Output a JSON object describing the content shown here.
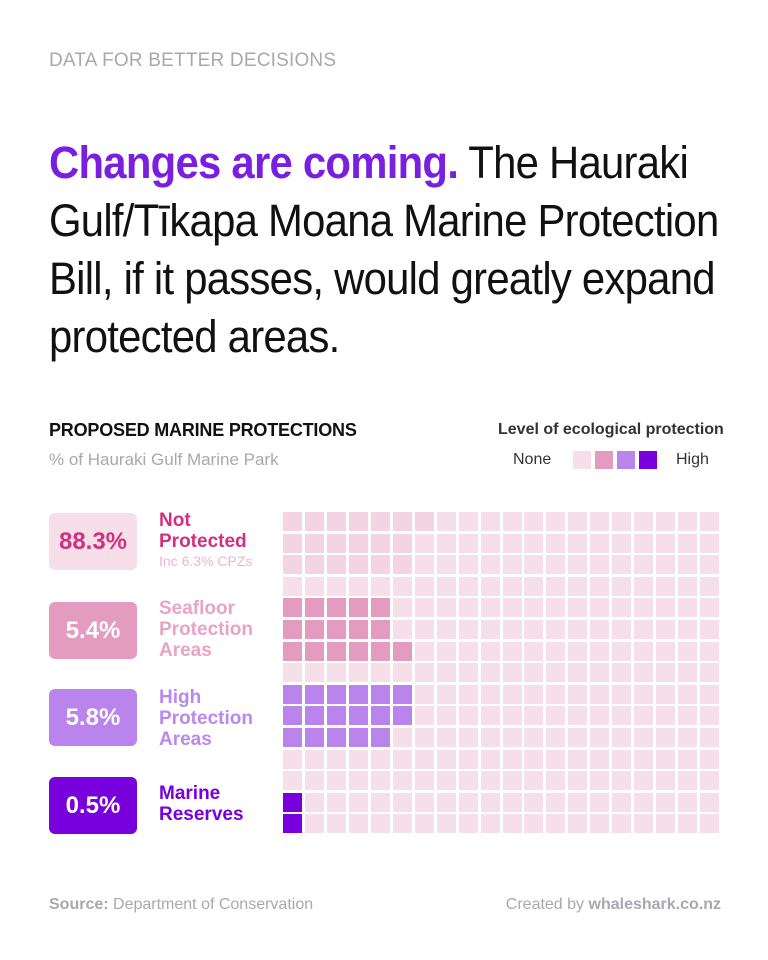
{
  "kicker": "DATA FOR BETTER DECISIONS",
  "headline": {
    "highlight": "Changes are coming.",
    "rest": " The Hauraki Gulf/Tīkapa Moana Marine Protection Bill, if it passes, would greatly expand protected areas."
  },
  "section": {
    "title": "PROPOSED MARINE PROTECTIONS",
    "subtitle": "% of Hauraki Gulf Marine Park"
  },
  "legend": {
    "title": "Level of ecological protection",
    "low_label": "None",
    "high_label": "High",
    "colors": [
      "#f7dfea",
      "#e49bc0",
      "#b984ec",
      "#7700dd"
    ]
  },
  "chart_data": {
    "type": "waffle",
    "title": "PROPOSED MARINE PROTECTIONS",
    "subtitle": "% of Hauraki Gulf Marine Park",
    "grid": {
      "columns": 20,
      "rows": 15
    },
    "categories": [
      {
        "key": "none",
        "pct": "88.3%",
        "value": 88.3,
        "label_lines": [
          "Not",
          "Protected"
        ],
        "note": "Inc 6.3% CPZs",
        "color": "#f7dfea",
        "text_color": "#d2307f",
        "badge_text_color": "#d2307f"
      },
      {
        "key": "seafloor",
        "pct": "5.4%",
        "value": 5.4,
        "label_lines": [
          "Seafloor",
          "Protection",
          "Areas"
        ],
        "color": "#e49bc0",
        "text_color": "#e9a3c6",
        "badge_text_color": "#ffffff"
      },
      {
        "key": "high",
        "pct": "5.8%",
        "value": 5.8,
        "label_lines": [
          "High",
          "Protection",
          "Areas"
        ],
        "color": "#b984ec",
        "text_color": "#bb88ee",
        "badge_text_color": "#ffffff"
      },
      {
        "key": "reserve",
        "pct": "0.5%",
        "value": 0.5,
        "label_lines": [
          "Marine",
          "Reserves"
        ],
        "color": "#7700dd",
        "text_color": "#7700dd",
        "badge_text_color": "#ffffff"
      }
    ],
    "cpz_color": "#f4d4e3",
    "rows": [
      "CCCCCCCnnnnnnnnnnnnn",
      "CCCCCCnnnnnnnnnnnnnn",
      "CCCCCCnnnnnnnnnnnnnn",
      "nnnnnnnnnnnnnnnnnnnn",
      "SSSSSnnnnnnnnnnnnnnn",
      "SSSSSnnnnnnnnnnnnnnn",
      "SSSSSSnnnnnnnnnnnnnn",
      "nnnnnnnnnnnnnnnnnnnn",
      "HHHHHHnnnnnnnnnnnnnn",
      "HHHHHHnnnnnnnnnnnnnn",
      "HHHHHnnnnnnnnnnnnnnn",
      "nnnnnnnnnnnnnnnnnnnn",
      "nnnnnnnnnnnnnnnnnnnn",
      "Rnnnnnnnnnnnnnnnnnnn",
      "Rnnnnnnnnnnnnnnnnnnn"
    ]
  },
  "footer": {
    "source_label": "Source:",
    "source": " Department of Conservation",
    "credit_prefix": "Created by ",
    "credit_site": "whaleshark.co.nz"
  }
}
